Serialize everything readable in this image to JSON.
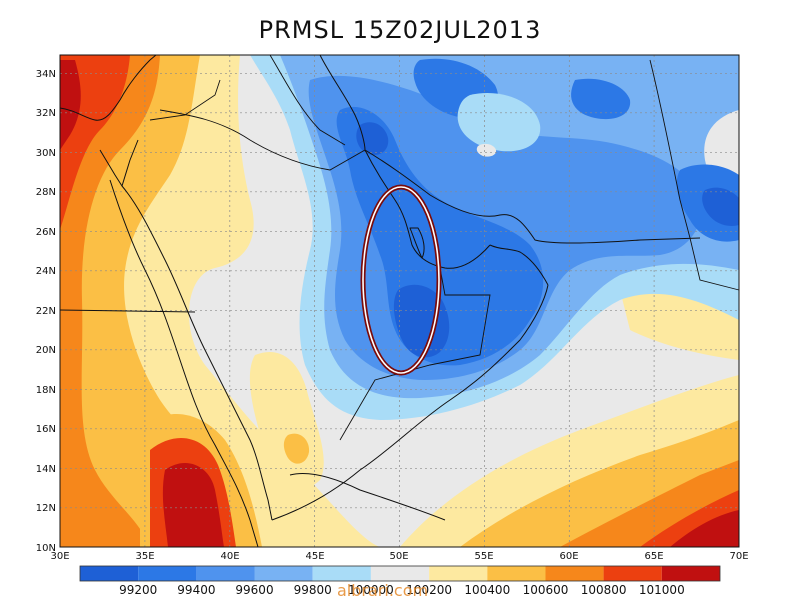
{
  "title": "PRMSL 15Z02JUL2013",
  "watermark": "albrari.com",
  "lat_labels": [
    "34N",
    "32N",
    "30N",
    "28N",
    "26N",
    "24N",
    "22N",
    "20N",
    "18N",
    "16N",
    "14N",
    "12N",
    "10N"
  ],
  "lon_labels": [
    "30E",
    "35E",
    "40E",
    "45E",
    "50E",
    "55E",
    "60E",
    "65E",
    "70E"
  ],
  "colorbar": {
    "labels": [
      "99200",
      "99400",
      "99600",
      "99800",
      "100000",
      "100200",
      "100400",
      "100600",
      "100800",
      "101000"
    ],
    "colors": [
      "#1e60d6",
      "#2c78e6",
      "#4f93ee",
      "#78b2f3",
      "#a9dcf7",
      "#e9e9e9",
      "#fde9a0",
      "#fbbf45",
      "#f6871b",
      "#ec4010",
      "#c01010"
    ]
  },
  "fill_colors": {
    "deep_low": "#1e60d6",
    "low": "#2c78e6",
    "mid_low": "#4f93ee",
    "light_blue": "#78b2f3",
    "pale_blue": "#a9dcf7",
    "grey": "#e9e9e9",
    "pale_yellow": "#fde9a0",
    "orange": "#fbbf45",
    "dark_orange": "#f6871b",
    "red": "#ec4010",
    "dark_red": "#c01010"
  },
  "highlight_color": "#7a0c0c"
}
